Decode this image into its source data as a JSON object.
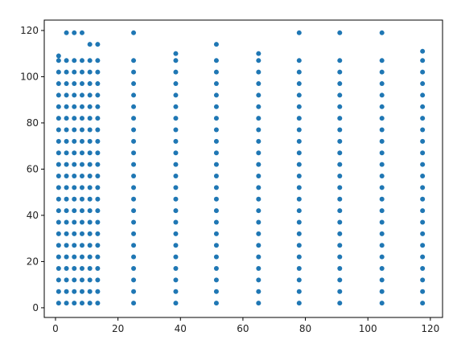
{
  "chart_data": {
    "type": "scatter",
    "color": "#1f77b4",
    "xlim": [
      -3.6,
      123.9
    ],
    "ylim": [
      -4.2,
      124.5
    ],
    "xticks": [
      0,
      20,
      40,
      60,
      80,
      100,
      120
    ],
    "yticks": [
      0,
      20,
      40,
      60,
      80,
      100,
      120
    ],
    "x": [
      1,
      1,
      1,
      1,
      1,
      1,
      1,
      1,
      1,
      1,
      1,
      1,
      1,
      1,
      1,
      1,
      1,
      1,
      1,
      1,
      1,
      1,
      1,
      3.5,
      3.5,
      3.5,
      3.5,
      3.5,
      3.5,
      3.5,
      3.5,
      3.5,
      3.5,
      3.5,
      3.5,
      3.5,
      3.5,
      3.5,
      3.5,
      3.5,
      3.5,
      3.5,
      3.5,
      3.5,
      3.5,
      3.5,
      6,
      6,
      6,
      6,
      6,
      6,
      6,
      6,
      6,
      6,
      6,
      6,
      6,
      6,
      6,
      6,
      6,
      6,
      6,
      6,
      6,
      6,
      6,
      8.5,
      8.5,
      8.5,
      8.5,
      8.5,
      8.5,
      8.5,
      8.5,
      8.5,
      8.5,
      8.5,
      8.5,
      8.5,
      8.5,
      8.5,
      8.5,
      8.5,
      8.5,
      8.5,
      8.5,
      8.5,
      8.5,
      8.5,
      11,
      11,
      11,
      11,
      11,
      11,
      11,
      11,
      11,
      11,
      11,
      11,
      11,
      11,
      11,
      11,
      11,
      11,
      11,
      11,
      11,
      11,
      11,
      13.5,
      13.5,
      13.5,
      13.5,
      13.5,
      13.5,
      13.5,
      13.5,
      13.5,
      13.5,
      13.5,
      13.5,
      13.5,
      13.5,
      13.5,
      13.5,
      13.5,
      13.5,
      13.5,
      13.5,
      13.5,
      13.5,
      13.5,
      25,
      25,
      25,
      25,
      25,
      25,
      25,
      25,
      25,
      25,
      25,
      25,
      25,
      25,
      25,
      25,
      25,
      25,
      25,
      25,
      25,
      25,
      25,
      38.5,
      38.5,
      38.5,
      38.5,
      38.5,
      38.5,
      38.5,
      38.5,
      38.5,
      38.5,
      38.5,
      38.5,
      38.5,
      38.5,
      38.5,
      38.5,
      38.5,
      38.5,
      38.5,
      38.5,
      38.5,
      38.5,
      38.5,
      51.5,
      51.5,
      51.5,
      51.5,
      51.5,
      51.5,
      51.5,
      51.5,
      51.5,
      51.5,
      51.5,
      51.5,
      51.5,
      51.5,
      51.5,
      51.5,
      51.5,
      51.5,
      51.5,
      51.5,
      51.5,
      51.5,
      51.5,
      65,
      65,
      65,
      65,
      65,
      65,
      65,
      65,
      65,
      65,
      65,
      65,
      65,
      65,
      65,
      65,
      65,
      65,
      65,
      65,
      65,
      65,
      65,
      78,
      78,
      78,
      78,
      78,
      78,
      78,
      78,
      78,
      78,
      78,
      78,
      78,
      78,
      78,
      78,
      78,
      78,
      78,
      78,
      78,
      78,
      78,
      91,
      91,
      91,
      91,
      91,
      91,
      91,
      91,
      91,
      91,
      91,
      91,
      91,
      91,
      91,
      91,
      91,
      91,
      91,
      91,
      91,
      91,
      91,
      104.5,
      104.5,
      104.5,
      104.5,
      104.5,
      104.5,
      104.5,
      104.5,
      104.5,
      104.5,
      104.5,
      104.5,
      104.5,
      104.5,
      104.5,
      104.5,
      104.5,
      104.5,
      104.5,
      104.5,
      104.5,
      104.5,
      104.5,
      117.5,
      117.5,
      117.5,
      117.5,
      117.5,
      117.5,
      117.5,
      117.5,
      117.5,
      117.5,
      117.5,
      117.5,
      117.5,
      117.5,
      117.5,
      117.5,
      117.5,
      117.5,
      117.5,
      117.5,
      117.5,
      117.5,
      117.5
    ],
    "values": [
      2,
      7,
      12,
      17,
      22,
      27,
      32,
      37,
      42,
      47,
      52,
      57,
      62,
      67,
      72,
      77,
      82,
      87,
      92,
      97,
      102,
      107,
      109,
      2,
      7,
      12,
      17,
      22,
      27,
      32,
      37,
      42,
      47,
      52,
      57,
      62,
      67,
      72,
      77,
      82,
      87,
      92,
      97,
      102,
      107,
      119,
      2,
      7,
      12,
      17,
      22,
      27,
      32,
      37,
      42,
      47,
      52,
      57,
      62,
      67,
      72,
      77,
      82,
      87,
      92,
      97,
      102,
      107,
      119,
      2,
      7,
      12,
      17,
      22,
      27,
      32,
      37,
      42,
      47,
      52,
      57,
      62,
      67,
      72,
      77,
      82,
      87,
      92,
      97,
      102,
      107,
      119,
      2,
      7,
      12,
      17,
      22,
      27,
      32,
      37,
      42,
      47,
      52,
      57,
      62,
      67,
      72,
      77,
      82,
      87,
      92,
      97,
      102,
      107,
      114,
      2,
      7,
      12,
      17,
      22,
      27,
      32,
      37,
      42,
      47,
      52,
      57,
      62,
      67,
      72,
      77,
      82,
      87,
      92,
      97,
      102,
      107,
      114,
      2,
      7,
      12,
      17,
      22,
      27,
      32,
      37,
      42,
      47,
      52,
      57,
      62,
      67,
      72,
      77,
      82,
      87,
      92,
      97,
      102,
      107,
      119,
      2,
      7,
      12,
      17,
      22,
      27,
      32,
      37,
      42,
      47,
      52,
      57,
      62,
      67,
      72,
      77,
      82,
      87,
      92,
      97,
      102,
      107,
      110,
      2,
      7,
      12,
      17,
      22,
      27,
      32,
      37,
      42,
      47,
      52,
      57,
      62,
      67,
      72,
      77,
      82,
      87,
      92,
      97,
      102,
      107,
      114,
      2,
      7,
      12,
      17,
      22,
      27,
      32,
      37,
      42,
      47,
      52,
      57,
      62,
      67,
      72,
      77,
      82,
      87,
      92,
      97,
      102,
      107,
      110,
      2,
      7,
      12,
      17,
      22,
      27,
      32,
      37,
      42,
      47,
      52,
      57,
      62,
      67,
      72,
      77,
      82,
      87,
      92,
      97,
      102,
      107,
      119,
      2,
      7,
      12,
      17,
      22,
      27,
      32,
      37,
      42,
      47,
      52,
      57,
      62,
      67,
      72,
      77,
      82,
      87,
      92,
      97,
      102,
      107,
      119,
      2,
      7,
      12,
      17,
      22,
      27,
      32,
      37,
      42,
      47,
      52,
      57,
      62,
      67,
      72,
      77,
      82,
      87,
      92,
      97,
      102,
      107,
      119,
      2,
      7,
      12,
      17,
      22,
      27,
      32,
      37,
      42,
      47,
      52,
      57,
      62,
      67,
      72,
      77,
      82,
      87,
      92,
      97,
      102,
      107,
      111
    ]
  }
}
